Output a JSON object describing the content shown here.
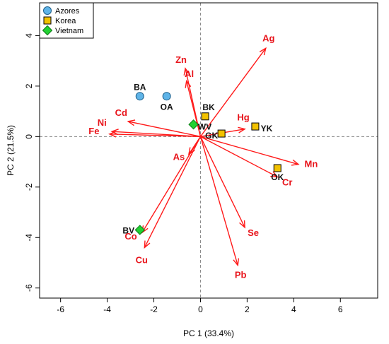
{
  "colors": {
    "arrow": "#ff1a1a",
    "var_label": "#e8141b",
    "azores": "#5fb4e8",
    "korea": "#f2c200",
    "vietnam": "#22d133",
    "frame": "#000000",
    "zero_line": "#888888"
  },
  "chart_data": {
    "type": "scatter",
    "subtype": "pca-biplot",
    "xlabel": "PC 1 (33.4%)",
    "ylabel": "PC 2 (21.5%)",
    "xlim": [
      -6.9,
      7.6
    ],
    "ylim": [
      -6.4,
      5.3
    ],
    "x_ticks": [
      -6,
      -4,
      -2,
      0,
      2,
      4,
      6
    ],
    "y_ticks": [
      -6,
      -4,
      -2,
      0,
      2,
      4
    ],
    "x_tick_labels": [
      "-6",
      "-4",
      "-2",
      "0",
      "2",
      "4",
      "6"
    ],
    "y_tick_labels": [
      "-6",
      "-4",
      "-2",
      "0",
      "2",
      "4"
    ],
    "zero_lines": true,
    "legend": {
      "position": "top-left",
      "entries": [
        {
          "label": "Azores",
          "marker": "circle",
          "color": "#5fb4e8"
        },
        {
          "label": "Korea",
          "marker": "square",
          "color": "#f2c200"
        },
        {
          "label": "Vietnam",
          "marker": "diamond",
          "color": "#22d133"
        }
      ]
    },
    "samples": [
      {
        "label": "BA",
        "group": "Azores",
        "x": -2.6,
        "y": 1.6
      },
      {
        "label": "OA",
        "group": "Azores",
        "x": -1.45,
        "y": 1.6
      },
      {
        "label": "BK",
        "group": "Korea",
        "x": 0.2,
        "y": 0.8
      },
      {
        "label": "GK",
        "group": "Korea",
        "x": 0.9,
        "y": 0.12
      },
      {
        "label": "YK",
        "group": "Korea",
        "x": 2.35,
        "y": 0.4
      },
      {
        "label": "OK",
        "group": "Korea",
        "x": 3.3,
        "y": -1.25
      },
      {
        "label": "WV",
        "group": "Vietnam",
        "x": -0.3,
        "y": 0.48
      },
      {
        "label": "BV",
        "group": "Vietnam",
        "x": -2.6,
        "y": -3.7
      }
    ],
    "loadings": [
      {
        "label": "Ag",
        "x": 2.8,
        "y": 3.5
      },
      {
        "label": "Zn",
        "x": -0.65,
        "y": 2.7
      },
      {
        "label": "Al",
        "x": -0.6,
        "y": 2.2
      },
      {
        "label": "Cd",
        "x": -3.1,
        "y": 0.6
      },
      {
        "label": "Ni",
        "x": -3.8,
        "y": 0.2
      },
      {
        "label": "Fe",
        "x": -3.9,
        "y": 0.1
      },
      {
        "label": "Hg",
        "x": 1.9,
        "y": 0.3
      },
      {
        "label": "As",
        "x": -0.5,
        "y": -0.7
      },
      {
        "label": "Mn",
        "x": 4.2,
        "y": -1.1
      },
      {
        "label": "Cr",
        "x": 3.3,
        "y": -1.6
      },
      {
        "label": "Se",
        "x": 1.9,
        "y": -3.6
      },
      {
        "label": "Pb",
        "x": 1.6,
        "y": -5.1
      },
      {
        "label": "Co",
        "x": -2.5,
        "y": -3.8
      },
      {
        "label": "Cu",
        "x": -2.4,
        "y": -4.4
      }
    ]
  }
}
